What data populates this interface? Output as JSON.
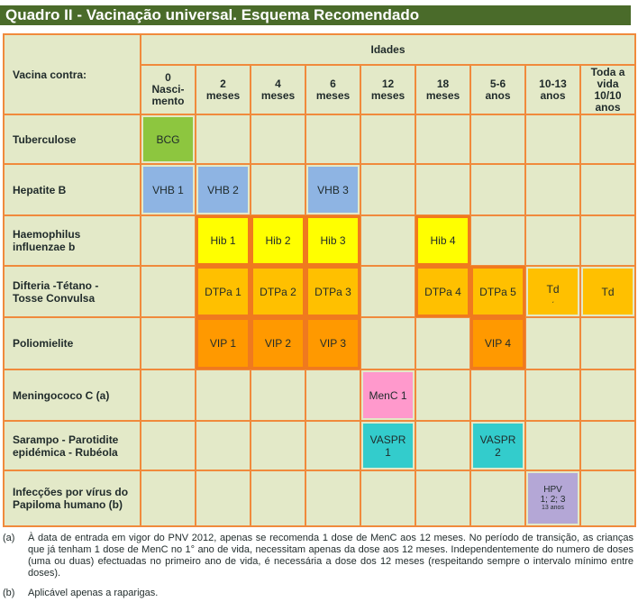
{
  "title": "Quadro II - Vacinação universal. Esquema Recomendado",
  "header": {
    "vaccine_col": "Vacina contra:",
    "idades": "Idades",
    "ages": [
      [
        "0",
        "Nasci-",
        "mento"
      ],
      [
        "2",
        "meses"
      ],
      [
        "4",
        "meses"
      ],
      [
        "6",
        "meses"
      ],
      [
        "12",
        "meses"
      ],
      [
        "18",
        "meses"
      ],
      [
        "5-6",
        "anos"
      ],
      [
        "10-13",
        "anos"
      ],
      [
        "Toda a",
        "vida",
        "10/10",
        "anos"
      ]
    ]
  },
  "rows": [
    {
      "name": [
        "Tuberculose"
      ],
      "cells": {
        "0": {
          "text": [
            "BCG"
          ],
          "color": "#8dc63f"
        }
      }
    },
    {
      "name": [
        "Hepatite B"
      ],
      "cells": {
        "0": {
          "text": [
            "VHB 1"
          ],
          "color": "#8eb4e3"
        },
        "1": {
          "text": [
            "VHB 2"
          ],
          "color": "#8eb4e3"
        },
        "3": {
          "text": [
            "VHB 3"
          ],
          "color": "#8eb4e3"
        }
      }
    },
    {
      "name": [
        "Haemophilus",
        "influenzae b"
      ],
      "cells": {
        "1": {
          "text": [
            "Hib 1"
          ],
          "color": "#ffff00"
        },
        "2": {
          "text": [
            "Hib 2"
          ],
          "color": "#ffff00"
        },
        "3": {
          "text": [
            "Hib 3"
          ],
          "color": "#ffff00"
        },
        "5": {
          "text": [
            "Hib 4"
          ],
          "color": "#ffff00"
        }
      }
    },
    {
      "name": [
        "Difteria -Tétano -",
        "Tosse Convulsa"
      ],
      "cells": {
        "1": {
          "text": [
            "DTPa 1"
          ],
          "color": "#ffc000"
        },
        "2": {
          "text": [
            "DTPa 2"
          ],
          "color": "#ffc000"
        },
        "3": {
          "text": [
            "DTPa 3"
          ],
          "color": "#ffc000"
        },
        "5": {
          "text": [
            "DTPa 4"
          ],
          "color": "#ffc000"
        },
        "6": {
          "text": [
            "DTPa 5"
          ],
          "color": "#ffc000"
        },
        "7": {
          "text": [
            "Td"
          ],
          "color": "#ffc000"
        },
        "8": {
          "text": [
            "Td"
          ],
          "color": "#ffc000"
        }
      }
    },
    {
      "name": [
        "Poliomielite"
      ],
      "cells": {
        "1": {
          "text": [
            "VIP 1"
          ],
          "color": "#ff9900"
        },
        "2": {
          "text": [
            "VIP 2"
          ],
          "color": "#ff9900"
        },
        "3": {
          "text": [
            "VIP 3"
          ],
          "color": "#ff9900"
        },
        "6": {
          "text": [
            "VIP 4"
          ],
          "color": "#ff9900"
        }
      }
    },
    {
      "name": [
        "Meningococo C (a)"
      ],
      "cells": {
        "4": {
          "text": [
            "MenC 1"
          ],
          "color": "#ff99cc"
        }
      }
    },
    {
      "name": [
        "Sarampo - Parotidite",
        "epidémica - Rubéola"
      ],
      "cells": {
        "4": {
          "text": [
            "VASPR",
            "1"
          ],
          "color": "#33cccc"
        },
        "6": {
          "text": [
            "VASPR",
            "2"
          ],
          "color": "#33cccc"
        }
      }
    },
    {
      "name": [
        "Infecções por vírus do",
        "Papiloma humano (b)"
      ],
      "cells": {
        "7": {
          "text": [
            "HPV",
            "1; 2; 3"
          ],
          "sub": "13 anos",
          "color": "#b4a7d6"
        }
      }
    }
  ],
  "notes": [
    {
      "letter": "(a)",
      "text": "À data de entrada em vigor do PNV 2012, apenas se recomenda 1 dose de MenC aos 12 meses. No período de transição, as crianças que já tenham 1 dose de MenC no 1° ano de vida, necessitam apenas da dose aos 12 meses. Independentemente do numero de doses (uma ou duas) efectuadas no primeiro ano de vida, é necessária a dose dos 12 meses (respeitando sempre o intervalo mínimo entre doses)."
    },
    {
      "letter": "(b)",
      "text": "Aplicável apenas a raparigas."
    }
  ]
}
